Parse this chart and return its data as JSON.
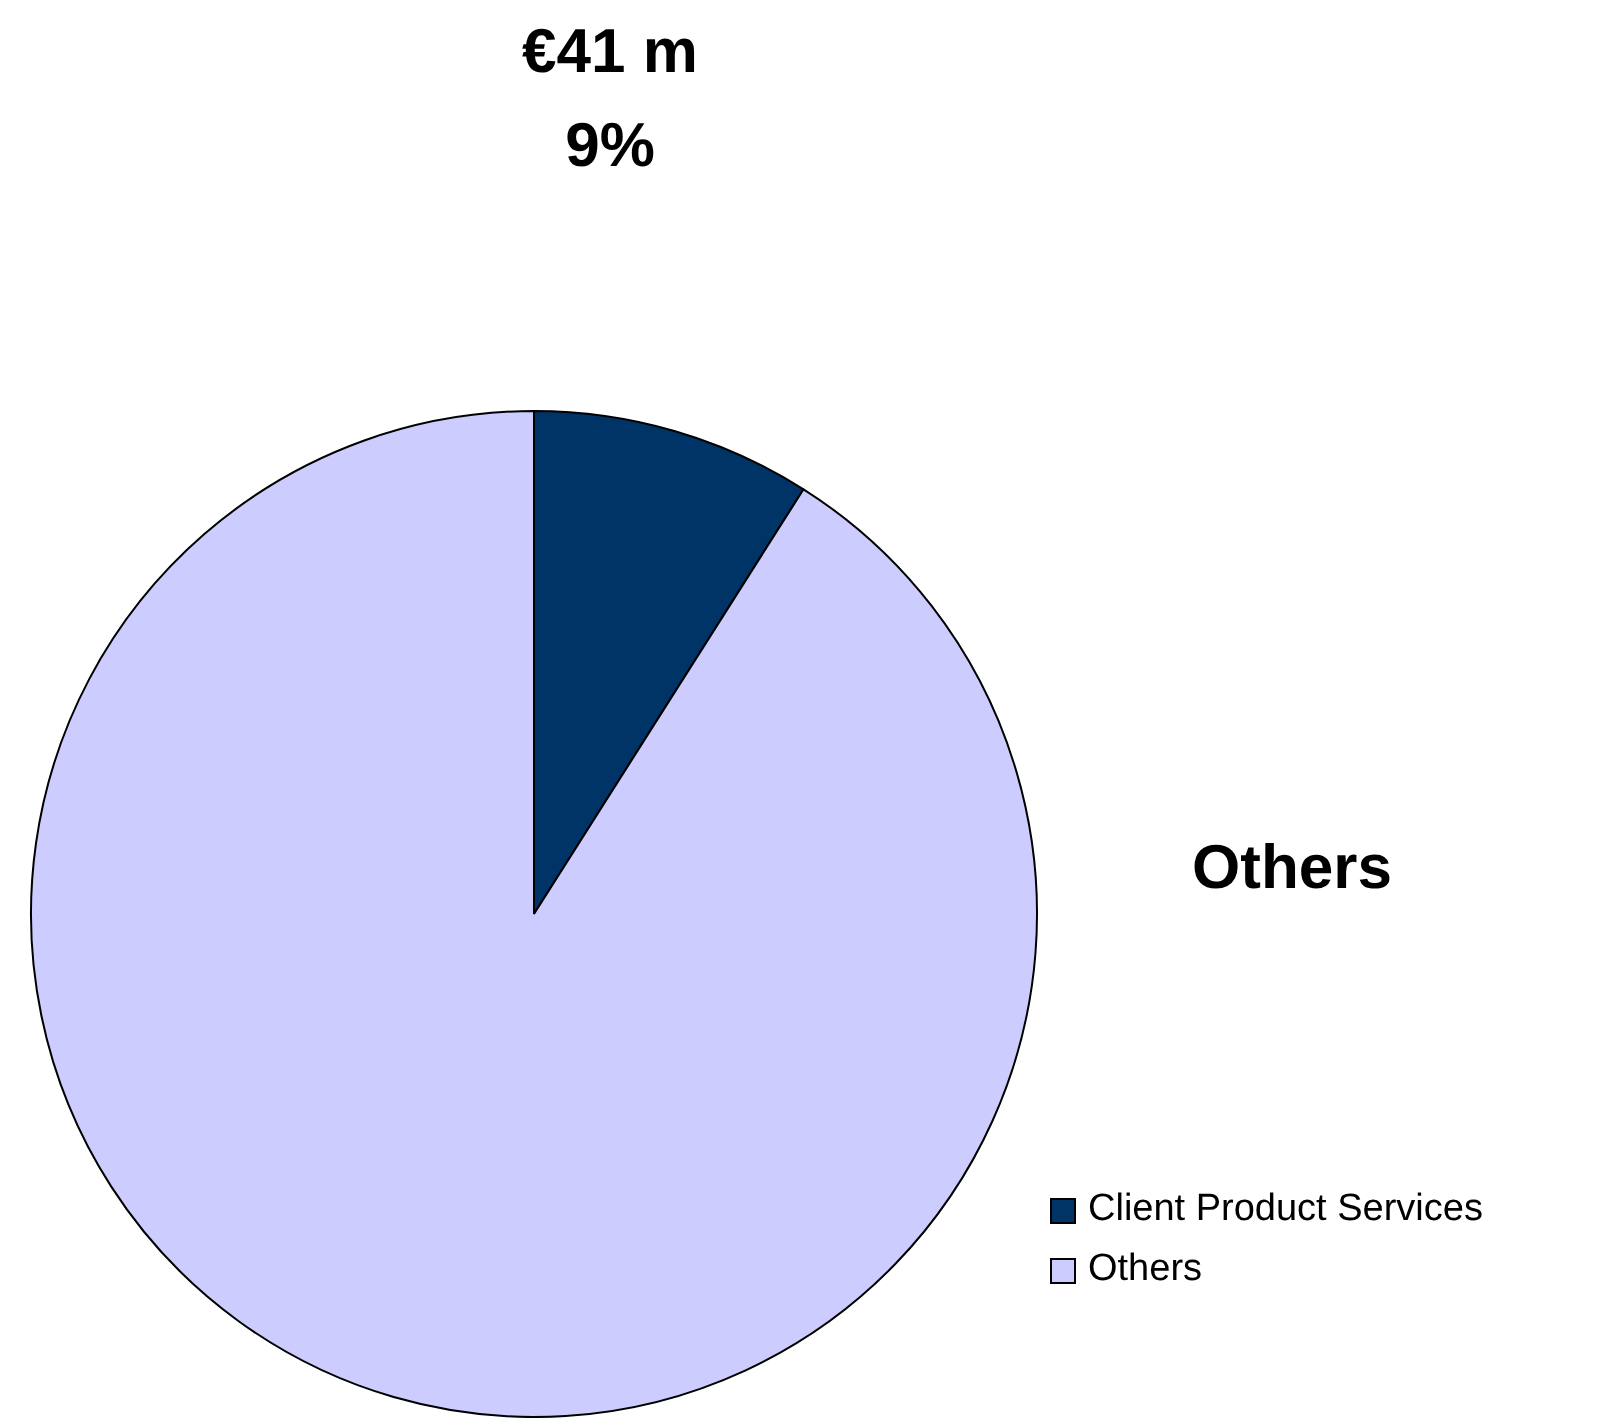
{
  "chart_data": {
    "type": "pie",
    "categories": [
      "Client Product Services",
      "Others"
    ],
    "values": [
      9,
      91
    ],
    "colors": [
      "#003366",
      "#ccccff"
    ],
    "legend": "bottom right",
    "annotations": [
      "€41 m",
      "9%",
      "Others"
    ]
  }
}
